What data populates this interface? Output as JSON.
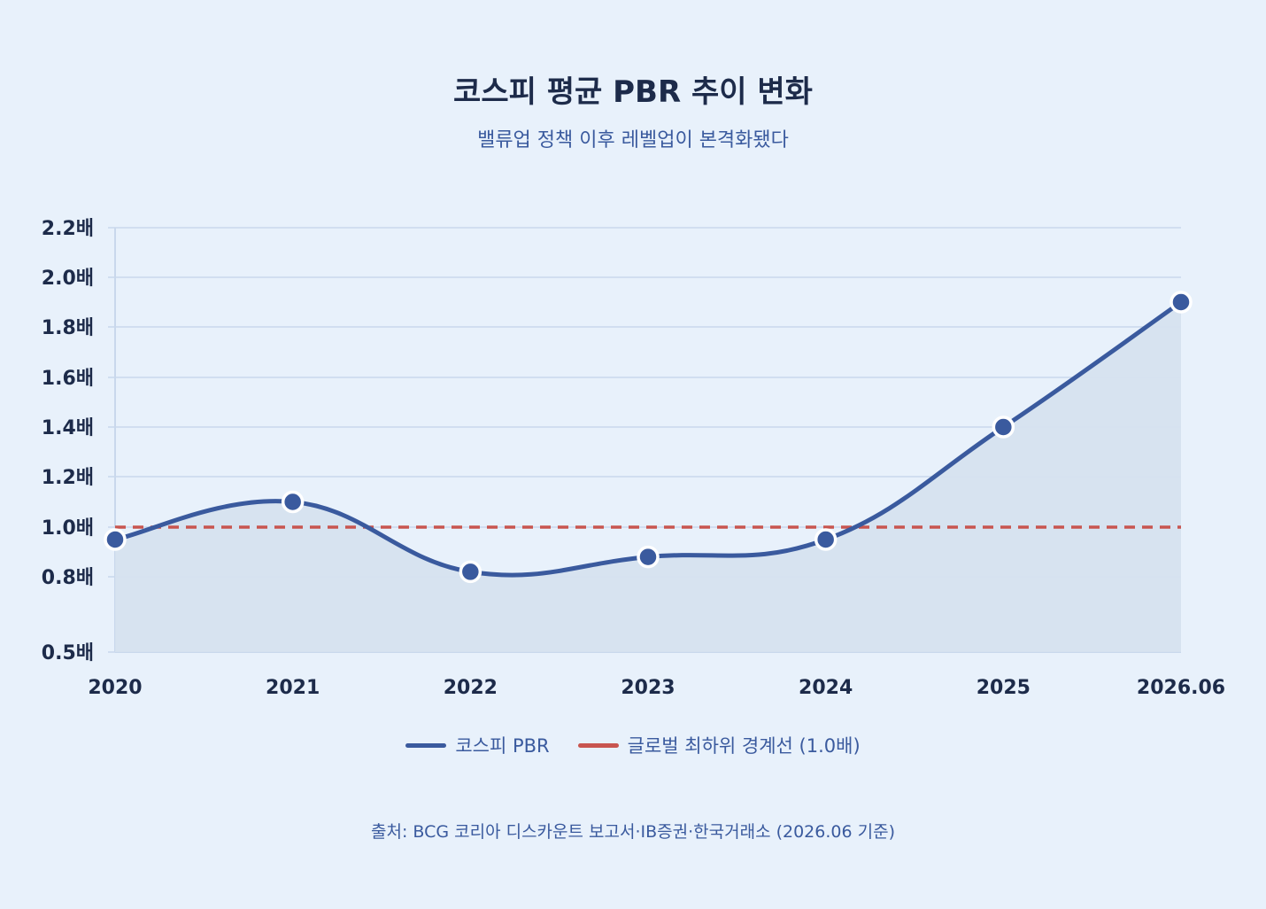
{
  "title": "코스피 평균 PBR 추이 변화",
  "subtitle": "밸류업 정책 이후 레벨업이 본격화됐다",
  "source": "출처: BCG 코리아 디스카운트 보고서·IB증권·한국거래소 (2026.06 기준)",
  "colors": {
    "background": "#e8f1fb",
    "series": "#3a5a9e",
    "area": "#d6e1ef",
    "threshold": "#c8554f",
    "grid": "#c9d8ec",
    "axis_text": "#1d2b4a"
  },
  "chart_data": {
    "type": "area",
    "title": "코스피 평균 PBR 추이 변화",
    "subtitle": "밸류업 정책 이후 레벨업이 본격화됐다",
    "categories": [
      "2020",
      "2021",
      "2022",
      "2023",
      "2024",
      "2025",
      "2026.06"
    ],
    "y_ticks": [
      0.5,
      0.8,
      1.0,
      1.2,
      1.4,
      1.6,
      1.8,
      2.0,
      2.2
    ],
    "y_tick_labels": [
      "0.5배",
      "0.8배",
      "1.0배",
      "1.2배",
      "1.4배",
      "1.6배",
      "1.8배",
      "2.0배",
      "2.2배"
    ],
    "ylim": [
      0.5,
      2.2
    ],
    "grid": true,
    "legend_position": "bottom-center",
    "series": [
      {
        "name": "코스피 PBR",
        "values": [
          0.95,
          1.1,
          0.82,
          0.88,
          0.95,
          1.4,
          1.9
        ],
        "style": "smooth-line-with-area-and-markers"
      }
    ],
    "reference_lines": [
      {
        "name": "글로벌 최하위 경계선 (1.0배)",
        "value": 1.0,
        "style": "dashed"
      }
    ]
  }
}
